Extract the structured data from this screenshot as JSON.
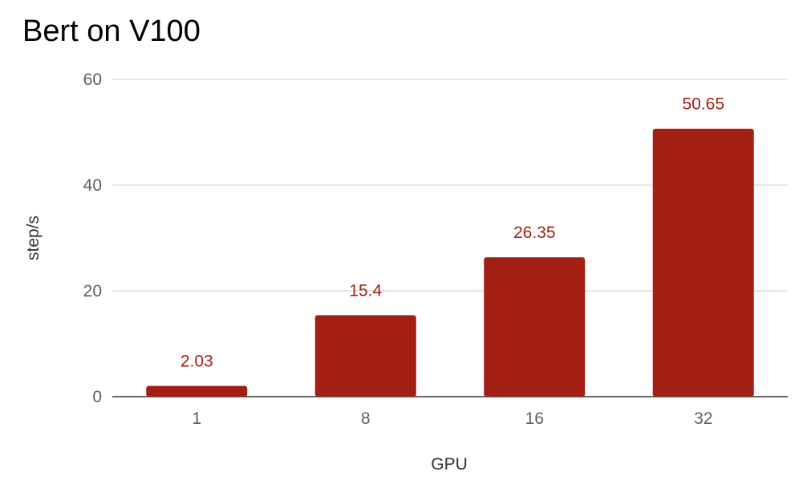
{
  "chart_data": {
    "type": "bar",
    "title": "Bert on V100",
    "xlabel": "GPU",
    "ylabel": "step/s",
    "categories": [
      "1",
      "8",
      "16",
      "32"
    ],
    "values": [
      2.03,
      15.4,
      26.35,
      50.65
    ],
    "data_labels": [
      "2.03",
      "15.4",
      "26.35",
      "50.65"
    ],
    "ylim": [
      0,
      60
    ],
    "yticks": [
      0,
      20,
      40,
      60
    ],
    "grid": true,
    "legend": "none"
  },
  "colors": {
    "bar": "#a31f13",
    "label": "#a31f13",
    "grid": "#d0d0d0",
    "baseline": "#333333"
  }
}
